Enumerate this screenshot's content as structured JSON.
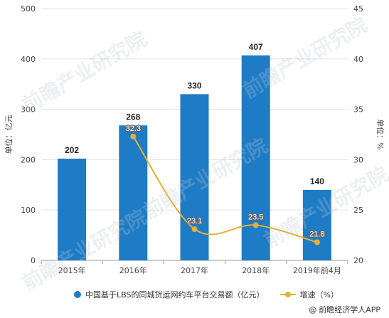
{
  "chart_data": {
    "type": "bar",
    "categories": [
      "2015年",
      "2016年",
      "2017年",
      "2018年",
      "2019年前4月"
    ],
    "series": [
      {
        "name": "中国基于LBS的同城货运网约车平台交易额（亿元）",
        "type": "bar",
        "axis": "left",
        "values": [
          202,
          268,
          330,
          407,
          140
        ],
        "color": "#1e7bc6"
      },
      {
        "name": "增速（%）",
        "type": "line",
        "axis": "right",
        "values": [
          null,
          32.3,
          23.1,
          23.5,
          21.8
        ],
        "color": "#e6b030"
      }
    ],
    "bar_labels": [
      "202",
      "268",
      "330",
      "407",
      "140"
    ],
    "line_labels": [
      "",
      "32.3",
      "23.1",
      "23.5",
      "21.8"
    ],
    "y_left": {
      "label": "单位：亿元",
      "ylim": [
        0,
        500
      ],
      "ticks": [
        0,
        100,
        200,
        300,
        400,
        500
      ]
    },
    "y_right": {
      "label": "单位：%",
      "ylim": [
        20,
        45
      ],
      "ticks": [
        20,
        25,
        30,
        35,
        40,
        45
      ]
    },
    "grid": true,
    "legend_position": "bottom"
  },
  "watermark": "前瞻产业研究院",
  "footer": {
    "icon": "at-icon",
    "source": "前瞻经济学人APP"
  }
}
